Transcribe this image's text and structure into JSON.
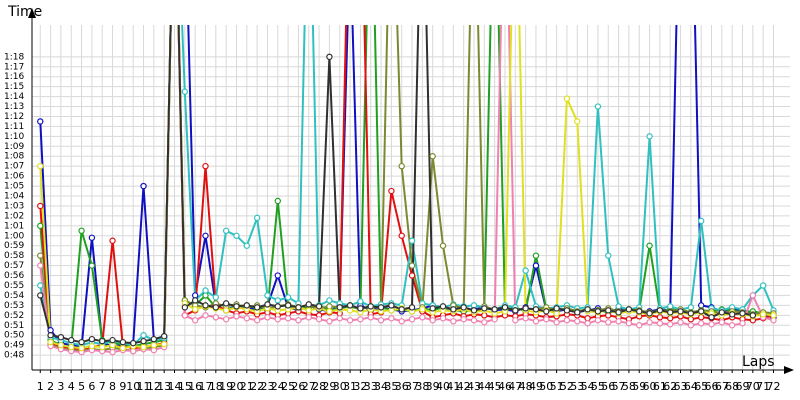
{
  "chart_data": {
    "type": "line",
    "y_label": "Time",
    "x_label": "Laps",
    "grid": true,
    "x": [
      1,
      2,
      3,
      4,
      5,
      6,
      7,
      8,
      9,
      10,
      11,
      12,
      13,
      14,
      15,
      16,
      17,
      18,
      19,
      20,
      21,
      22,
      23,
      24,
      25,
      26,
      27,
      28,
      29,
      30,
      31,
      32,
      33,
      34,
      35,
      36,
      37,
      38,
      39,
      40,
      41,
      42,
      43,
      44,
      45,
      46,
      47,
      48,
      49,
      50,
      51,
      52,
      53,
      54,
      55,
      56,
      57,
      58,
      59,
      60,
      61,
      62,
      63,
      64,
      65,
      66,
      67,
      68,
      69,
      70,
      71,
      72
    ],
    "xlim": [
      0.2,
      73.6
    ],
    "xticks": [
      1,
      2,
      3,
      4,
      5,
      6,
      7,
      8,
      9,
      10,
      11,
      12,
      13,
      14,
      15,
      16,
      17,
      18,
      19,
      20,
      21,
      22,
      23,
      24,
      25,
      26,
      27,
      28,
      29,
      30,
      31,
      32,
      33,
      34,
      35,
      36,
      37,
      38,
      39,
      40,
      41,
      42,
      43,
      44,
      45,
      46,
      47,
      48,
      49,
      50,
      51,
      52,
      53,
      54,
      55,
      56,
      57,
      58,
      59,
      60,
      61,
      62,
      63,
      64,
      65,
      66,
      67,
      68,
      69,
      70,
      71,
      72
    ],
    "ylim": [
      46.5,
      81.2
    ],
    "yticks": [
      {
        "value": 48,
        "label": "0:48"
      },
      {
        "value": 49,
        "label": "0:49"
      },
      {
        "value": 50,
        "label": "0:50"
      },
      {
        "value": 51,
        "label": "0:51"
      },
      {
        "value": 52,
        "label": "0:52"
      },
      {
        "value": 53,
        "label": "0:53"
      },
      {
        "value": 54,
        "label": "0:54"
      },
      {
        "value": 55,
        "label": "0:55"
      },
      {
        "value": 56,
        "label": "0:56"
      },
      {
        "value": 57,
        "label": "0:57"
      },
      {
        "value": 58,
        "label": "0:58"
      },
      {
        "value": 59,
        "label": "0:59"
      },
      {
        "value": 60,
        "label": "1:00"
      },
      {
        "value": 61,
        "label": "1:01"
      },
      {
        "value": 62,
        "label": "1:02"
      },
      {
        "value": 63,
        "label": "1:03"
      },
      {
        "value": 64,
        "label": "1:04"
      },
      {
        "value": 65,
        "label": "1:05"
      },
      {
        "value": 66,
        "label": "1:06"
      },
      {
        "value": 67,
        "label": "1:07"
      },
      {
        "value": 68,
        "label": "1:08"
      },
      {
        "value": 69,
        "label": "1:09"
      },
      {
        "value": 70,
        "label": "1:10"
      },
      {
        "value": 71,
        "label": "1:11"
      },
      {
        "value": 72,
        "label": "1:12"
      },
      {
        "value": 73,
        "label": "1:13"
      },
      {
        "value": 74,
        "label": "1:14"
      },
      {
        "value": 75,
        "label": "1:15"
      },
      {
        "value": 76,
        "label": "1:16"
      },
      {
        "value": 77,
        "label": "1:17"
      },
      {
        "value": 78,
        "label": "1:18"
      }
    ],
    "series": [
      {
        "color": "#1010c0",
        "values": [
          71.5,
          50.5,
          49.2,
          49.0,
          48.8,
          59.8,
          49.2,
          48.9,
          49.0,
          49.2,
          65.0,
          49.5,
          49.8,
          100,
          95,
          54.0,
          60.0,
          53.0,
          52.5,
          53.0,
          52.8,
          52.5,
          53.0,
          56.0,
          52.8,
          52.5,
          53.0,
          52.6,
          52.4,
          53.0,
          90,
          53.0,
          52.5,
          52.8,
          52.6,
          52.4,
          52.5,
          52.7,
          53.0,
          52.8,
          52.5,
          52.4,
          52.6,
          52.8,
          52.5,
          52.6,
          52.4,
          52.8,
          57.0,
          52.5,
          52.4,
          52.6,
          52.3,
          52.5,
          52.7,
          52.4,
          52.6,
          52.5,
          52.3,
          52.4,
          52.6,
          52.5,
          100,
          100,
          53.0,
          52.8,
          52.4,
          52.6,
          52.5,
          52.3,
          52.0,
          51.8
        ]
      },
      {
        "color": "#20a020",
        "values": [
          61.0,
          49.5,
          49.0,
          48.8,
          60.5,
          57.0,
          49.5,
          49.3,
          49.0,
          48.9,
          49.1,
          49.3,
          49.5,
          100,
          53.5,
          53.0,
          54.0,
          52.8,
          52.5,
          52.9,
          53.0,
          52.7,
          52.5,
          63.5,
          52.9,
          52.6,
          52.8,
          53.0,
          52.5,
          52.7,
          52.9,
          52.6,
          100,
          52.8,
          52.5,
          52.6,
          52.4,
          52.7,
          52.5,
          52.8,
          52.6,
          52.4,
          52.5,
          52.7,
          100,
          52.5,
          52.8,
          52.4,
          58.0,
          52.6,
          52.5,
          52.7,
          52.4,
          52.6,
          52.5,
          52.3,
          52.4,
          52.6,
          52.5,
          59.0,
          52.4,
          52.6,
          52.5,
          52.3,
          52.5,
          52.4,
          52.6,
          52.5,
          52.3,
          52.4,
          52.2,
          52.1
        ]
      },
      {
        "color": "#e01010",
        "values": [
          63.0,
          49.2,
          48.9,
          48.7,
          48.6,
          48.8,
          49.0,
          59.5,
          48.9,
          48.7,
          48.8,
          49.0,
          49.2,
          100,
          52.0,
          52.5,
          67.0,
          53.0,
          52.5,
          52.2,
          52.4,
          52.1,
          52.3,
          52.0,
          52.2,
          52.4,
          52.1,
          52.0,
          52.3,
          52.2,
          100,
          100,
          52.1,
          52.3,
          64.5,
          60.0,
          56.0,
          52.4,
          51.8,
          52.0,
          52.2,
          51.9,
          52.1,
          52.0,
          51.8,
          52.0,
          51.9,
          52.1,
          52.0,
          51.8,
          51.9,
          52.1,
          52.0,
          51.7,
          51.9,
          52.0,
          51.8,
          51.6,
          51.9,
          52.0,
          51.8,
          51.7,
          51.9,
          51.6,
          51.8,
          51.7,
          51.5,
          51.8,
          51.6,
          51.5,
          51.7,
          52.0
        ]
      },
      {
        "color": "#30c0c0",
        "values": [
          55.0,
          49.8,
          49.5,
          49.2,
          49.0,
          49.3,
          49.1,
          49.4,
          49.2,
          49.0,
          50.0,
          49.5,
          49.7,
          100,
          74.5,
          53.5,
          54.5,
          53.8,
          60.5,
          60.0,
          59.0,
          61.8,
          54.0,
          53.5,
          53.8,
          53.2,
          100,
          53.0,
          53.5,
          53.2,
          53.0,
          53.4,
          52.9,
          53.1,
          53.2,
          53.0,
          59.5,
          53.2,
          53.0,
          52.8,
          53.1,
          52.9,
          53.0,
          52.8,
          52.6,
          53.0,
          52.8,
          56.5,
          52.9,
          52.7,
          52.8,
          53.0,
          52.7,
          52.8,
          73.0,
          58.0,
          52.9,
          52.6,
          52.8,
          70.0,
          52.7,
          52.9,
          52.6,
          52.8,
          61.5,
          52.7,
          52.5,
          52.8,
          52.6,
          54.0,
          55.0,
          52.5
        ]
      },
      {
        "color": "#7a8a30",
        "values": [
          58.0,
          49.0,
          48.7,
          48.5,
          48.4,
          48.6,
          48.5,
          48.7,
          48.6,
          48.4,
          48.6,
          48.8,
          49.0,
          100,
          53.5,
          53.0,
          52.8,
          53.2,
          52.9,
          53.1,
          52.8,
          53.0,
          52.7,
          52.9,
          53.1,
          52.8,
          53.0,
          52.7,
          52.9,
          52.8,
          53.0,
          52.6,
          52.9,
          52.7,
          100,
          67.0,
          57.0,
          52.8,
          68.0,
          59.0,
          53.0,
          52.7,
          100,
          52.9,
          52.6,
          52.8,
          52.5,
          52.7,
          52.6,
          52.8,
          52.5,
          52.7,
          52.4,
          52.6,
          52.5,
          52.7,
          52.4,
          52.6,
          52.5,
          52.3,
          52.5,
          52.4,
          52.6,
          52.3,
          52.5,
          52.4,
          52.2,
          52.4,
          52.3,
          52.1,
          52.3,
          52.2
        ]
      },
      {
        "color": "#f080b0",
        "values": [
          57.0,
          48.9,
          48.6,
          48.4,
          48.3,
          48.5,
          48.4,
          48.3,
          48.5,
          48.4,
          48.6,
          48.5,
          48.8,
          100,
          52.0,
          51.5,
          52.0,
          51.8,
          51.6,
          51.9,
          51.7,
          51.5,
          51.8,
          51.6,
          51.7,
          51.5,
          51.8,
          51.6,
          51.4,
          51.7,
          51.5,
          51.6,
          51.8,
          51.5,
          51.7,
          51.4,
          51.6,
          51.8,
          51.5,
          51.7,
          51.4,
          51.6,
          51.5,
          51.3,
          51.6,
          100,
          51.5,
          51.7,
          51.4,
          51.6,
          51.3,
          51.5,
          51.4,
          51.2,
          51.5,
          51.3,
          51.4,
          51.2,
          51.0,
          51.3,
          51.2,
          51.1,
          51.3,
          51.0,
          51.2,
          51.1,
          51.3,
          51.0,
          51.2,
          54.0,
          51.8,
          51.5
        ]
      },
      {
        "color": "#e0e020",
        "values": [
          67.0,
          49.3,
          49.0,
          48.8,
          48.7,
          48.9,
          48.8,
          49.0,
          48.7,
          48.9,
          48.8,
          49.0,
          49.1,
          100,
          53.2,
          52.6,
          52.9,
          52.7,
          52.5,
          52.8,
          52.6,
          52.4,
          52.7,
          52.5,
          52.6,
          52.8,
          52.5,
          52.7,
          52.4,
          52.6,
          52.5,
          52.3,
          52.6,
          52.4,
          52.5,
          52.7,
          52.4,
          52.6,
          52.3,
          52.5,
          52.4,
          52.6,
          52.3,
          52.5,
          52.2,
          52.4,
          100,
          52.5,
          52.3,
          52.5,
          52.2,
          73.8,
          71.5,
          52.4,
          52.3,
          52.5,
          52.2,
          52.4,
          52.3,
          52.1,
          52.4,
          52.2,
          52.3,
          52.1,
          52.3,
          52.2,
          52.0,
          52.2,
          52.1,
          51.9,
          52.1,
          52.0
        ]
      },
      {
        "color": "#303030",
        "values": [
          54.0,
          50.0,
          49.8,
          49.5,
          49.3,
          49.6,
          49.4,
          49.5,
          49.3,
          49.2,
          49.4,
          49.6,
          49.9,
          100,
          52.8,
          53.5,
          53.0,
          52.8,
          53.2,
          52.9,
          53.0,
          52.8,
          53.1,
          52.9,
          53.0,
          52.8,
          53.1,
          52.9,
          78.0,
          52.8,
          53.0,
          52.7,
          52.9,
          52.8,
          53.0,
          52.6,
          52.8,
          100,
          52.7,
          52.9,
          52.6,
          52.8,
          52.5,
          52.7,
          52.6,
          52.8,
          52.5,
          52.7,
          52.6,
          52.4,
          52.7,
          52.5,
          52.3,
          52.6,
          52.4,
          52.5,
          52.3,
          52.6,
          52.4,
          52.2,
          52.5,
          52.3,
          52.4,
          52.2,
          52.4,
          51.8,
          52.3,
          52.1,
          52.2,
          52.0,
          null,
          null
        ]
      }
    ]
  }
}
